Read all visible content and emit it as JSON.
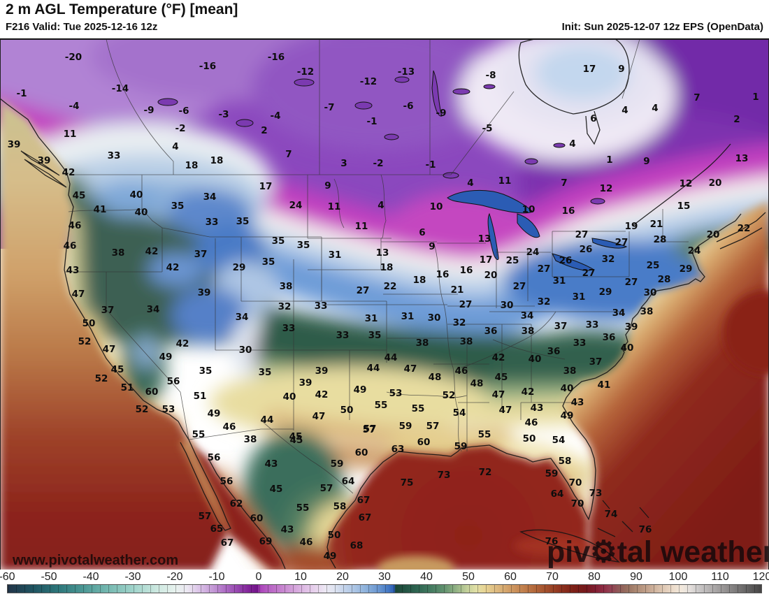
{
  "header": {
    "title": "2 m AGL Temperature (°F) [mean]",
    "valid": "F216 Valid: Tue 2025-12-16 12z",
    "init": "Init: Sun 2025-12-07 12z EPS (OpenData)"
  },
  "watermark": {
    "part1": "piv",
    "gear": "⚙",
    "part2": "tal weather",
    "url": "www.pivotalweather.com"
  },
  "colorbar": {
    "min": -60,
    "max": 120,
    "ticks": [
      -60,
      -50,
      -40,
      -30,
      -20,
      -10,
      0,
      10,
      20,
      30,
      40,
      50,
      60,
      70,
      80,
      90,
      100,
      110,
      120
    ],
    "stops": [
      [
        -60,
        "#223448"
      ],
      [
        -54,
        "#1f5360"
      ],
      [
        -48,
        "#2d767a"
      ],
      [
        -42,
        "#4b9794"
      ],
      [
        -36,
        "#76b9b1"
      ],
      [
        -30,
        "#a0d4cb"
      ],
      [
        -24,
        "#cfe9e1"
      ],
      [
        -20,
        "#e7f2ee"
      ],
      [
        -17,
        "#ece7f2"
      ],
      [
        -14,
        "#d9bfe6"
      ],
      [
        -11,
        "#c49ad6"
      ],
      [
        -8,
        "#ad6cc4"
      ],
      [
        -5,
        "#9545ae"
      ],
      [
        -2,
        "#7f1f96"
      ],
      [
        -0.2,
        "#6f1486"
      ],
      [
        0,
        "#a83eb8"
      ],
      [
        2,
        "#b55cc2"
      ],
      [
        5,
        "#c47ecd"
      ],
      [
        8,
        "#d29fd9"
      ],
      [
        11,
        "#dfbde5"
      ],
      [
        14,
        "#e9d7ee"
      ],
      [
        16,
        "#ece9f4"
      ],
      [
        18,
        "#dfe4f1"
      ],
      [
        20,
        "#c8d6ec"
      ],
      [
        23,
        "#aac4e4"
      ],
      [
        26,
        "#88aeda"
      ],
      [
        29,
        "#6492cf"
      ],
      [
        31,
        "#4276c2"
      ],
      [
        32.4,
        "#2b5cb2"
      ],
      [
        32.6,
        "#1c4636"
      ],
      [
        35,
        "#235444"
      ],
      [
        38,
        "#2f6652"
      ],
      [
        41,
        "#437a60"
      ],
      [
        44,
        "#5f906e"
      ],
      [
        46,
        "#7fa67c"
      ],
      [
        48,
        "#a3bc8c"
      ],
      [
        50,
        "#c8d29c"
      ],
      [
        52,
        "#e2e0a6"
      ],
      [
        54,
        "#e8d494"
      ],
      [
        57,
        "#ddb87e"
      ],
      [
        60,
        "#d09c64"
      ],
      [
        63,
        "#c2814e"
      ],
      [
        66,
        "#b2663a"
      ],
      [
        69,
        "#a04c2a"
      ],
      [
        72,
        "#8e331f"
      ],
      [
        75,
        "#7d2117"
      ],
      [
        78,
        "#75191c"
      ],
      [
        80,
        "#7f1d2e"
      ],
      [
        82,
        "#8d2a42"
      ],
      [
        84,
        "#934052"
      ],
      [
        86,
        "#8f5a58"
      ],
      [
        88,
        "#97705f"
      ],
      [
        90,
        "#ab8872"
      ],
      [
        93,
        "#c4a48e"
      ],
      [
        96,
        "#dbc3ae"
      ],
      [
        99,
        "#ecdccb"
      ],
      [
        101,
        "#f2e9dd"
      ],
      [
        103,
        "#e4dfdc"
      ],
      [
        105,
        "#cbc8c8"
      ],
      [
        108,
        "#b2afaf"
      ],
      [
        111,
        "#989595"
      ],
      [
        114,
        "#7c7a7a"
      ],
      [
        117,
        "#616060"
      ],
      [
        120,
        "#454444"
      ]
    ]
  },
  "map_labels": [
    [
      -20,
      105,
      80
    ],
    [
      -16,
      297,
      93
    ],
    [
      -14,
      172,
      125
    ],
    [
      -1,
      31,
      132
    ],
    [
      -4,
      106,
      150
    ],
    [
      -9,
      213,
      156
    ],
    [
      -6,
      263,
      157
    ],
    [
      -3,
      320,
      162
    ],
    [
      -2,
      258,
      182
    ],
    [
      11,
      100,
      190
    ],
    [
      4,
      251,
      208
    ],
    [
      33,
      163,
      221
    ],
    [
      18,
      274,
      235
    ],
    [
      18,
      310,
      228
    ],
    [
      39,
      20,
      205
    ],
    [
      39,
      63,
      228
    ],
    [
      42,
      98,
      245
    ],
    [
      -16,
      395,
      80
    ],
    [
      -12,
      437,
      101
    ],
    [
      -13,
      581,
      101
    ],
    [
      -12,
      527,
      115
    ],
    [
      -8,
      702,
      106
    ],
    [
      -7,
      471,
      152
    ],
    [
      -6,
      584,
      150
    ],
    [
      -9,
      631,
      160
    ],
    [
      -4,
      394,
      164
    ],
    [
      -1,
      532,
      172
    ],
    [
      -5,
      697,
      182
    ],
    [
      2,
      378,
      185
    ],
    [
      7,
      413,
      219
    ],
    [
      3,
      492,
      232
    ],
    [
      -2,
      541,
      232
    ],
    [
      -1,
      616,
      234
    ],
    [
      17,
      843,
      97
    ],
    [
      9,
      889,
      97
    ],
    [
      7,
      997,
      138
    ],
    [
      4,
      894,
      156
    ],
    [
      4,
      937,
      153
    ],
    [
      6,
      849,
      168
    ],
    [
      2,
      1054,
      169
    ],
    [
      1,
      1081,
      137
    ],
    [
      4,
      819,
      204
    ],
    [
      1,
      872,
      227
    ],
    [
      9,
      925,
      229
    ],
    [
      13,
      1061,
      225
    ],
    [
      45,
      113,
      278
    ],
    [
      40,
      195,
      277
    ],
    [
      34,
      300,
      280
    ],
    [
      41,
      143,
      298
    ],
    [
      40,
      202,
      302
    ],
    [
      35,
      254,
      293
    ],
    [
      33,
      303,
      316
    ],
    [
      35,
      347,
      315
    ],
    [
      46,
      107,
      321
    ],
    [
      46,
      100,
      350
    ],
    [
      38,
      169,
      360
    ],
    [
      42,
      217,
      358
    ],
    [
      37,
      287,
      362
    ],
    [
      42,
      247,
      381
    ],
    [
      29,
      342,
      381
    ],
    [
      43,
      104,
      385
    ],
    [
      47,
      112,
      419
    ],
    [
      39,
      292,
      417
    ],
    [
      17,
      380,
      265
    ],
    [
      9,
      469,
      264
    ],
    [
      24,
      423,
      292
    ],
    [
      11,
      478,
      294
    ],
    [
      4,
      545,
      292
    ],
    [
      10,
      624,
      294
    ],
    [
      4,
      673,
      260
    ],
    [
      11,
      722,
      257
    ],
    [
      11,
      517,
      322
    ],
    [
      6,
      604,
      331
    ],
    [
      13,
      693,
      340
    ],
    [
      9,
      618,
      351
    ],
    [
      35,
      398,
      343
    ],
    [
      35,
      434,
      349
    ],
    [
      35,
      384,
      373
    ],
    [
      31,
      479,
      363
    ],
    [
      13,
      547,
      360
    ],
    [
      17,
      695,
      370
    ],
    [
      25,
      733,
      371
    ],
    [
      18,
      553,
      381
    ],
    [
      16,
      633,
      391
    ],
    [
      16,
      667,
      385
    ],
    [
      20,
      702,
      392
    ],
    [
      18,
      600,
      399
    ],
    [
      22,
      558,
      408
    ],
    [
      27,
      519,
      414
    ],
    [
      21,
      654,
      413
    ],
    [
      38,
      409,
      408
    ],
    [
      7,
      807,
      260
    ],
    [
      12,
      867,
      268
    ],
    [
      12,
      981,
      261
    ],
    [
      20,
      1023,
      260
    ],
    [
      10,
      756,
      298
    ],
    [
      16,
      813,
      300
    ],
    [
      15,
      978,
      293
    ],
    [
      19,
      903,
      322
    ],
    [
      21,
      939,
      319
    ],
    [
      22,
      1064,
      325
    ],
    [
      20,
      1020,
      334
    ],
    [
      27,
      832,
      334
    ],
    [
      27,
      889,
      345
    ],
    [
      28,
      944,
      341
    ],
    [
      26,
      838,
      355
    ],
    [
      32,
      870,
      369
    ],
    [
      24,
      762,
      359
    ],
    [
      26,
      809,
      371
    ],
    [
      24,
      993,
      357
    ],
    [
      25,
      934,
      378
    ],
    [
      27,
      778,
      383
    ],
    [
      29,
      981,
      383
    ],
    [
      31,
      800,
      400
    ],
    [
      27,
      842,
      389
    ],
    [
      28,
      950,
      398
    ],
    [
      27,
      903,
      402
    ],
    [
      27,
      743,
      408
    ],
    [
      29,
      866,
      416
    ],
    [
      30,
      930,
      417
    ],
    [
      31,
      828,
      423
    ],
    [
      32,
      778,
      430
    ],
    [
      37,
      154,
      442
    ],
    [
      34,
      219,
      441
    ],
    [
      34,
      346,
      452
    ],
    [
      50,
      127,
      461
    ],
    [
      52,
      121,
      487
    ],
    [
      47,
      156,
      498
    ],
    [
      42,
      261,
      490
    ],
    [
      30,
      351,
      499
    ],
    [
      45,
      168,
      527
    ],
    [
      35,
      294,
      529
    ],
    [
      52,
      145,
      540
    ],
    [
      51,
      182,
      553
    ],
    [
      56,
      248,
      544
    ],
    [
      60,
      217,
      559
    ],
    [
      51,
      286,
      565
    ],
    [
      52,
      203,
      584
    ],
    [
      53,
      241,
      584
    ],
    [
      49,
      306,
      590
    ],
    [
      46,
      328,
      609
    ],
    [
      49,
      237,
      509
    ],
    [
      32,
      407,
      437
    ],
    [
      33,
      459,
      436
    ],
    [
      27,
      666,
      434
    ],
    [
      30,
      725,
      435
    ],
    [
      31,
      531,
      454
    ],
    [
      31,
      583,
      451
    ],
    [
      30,
      621,
      453
    ],
    [
      32,
      657,
      460
    ],
    [
      33,
      413,
      468
    ],
    [
      33,
      490,
      478
    ],
    [
      35,
      536,
      478
    ],
    [
      36,
      702,
      472
    ],
    [
      38,
      604,
      489
    ],
    [
      38,
      667,
      487
    ],
    [
      42,
      713,
      510
    ],
    [
      44,
      559,
      510
    ],
    [
      44,
      534,
      525
    ],
    [
      47,
      587,
      526
    ],
    [
      46,
      660,
      529
    ],
    [
      35,
      379,
      531
    ],
    [
      48,
      622,
      538
    ],
    [
      45,
      717,
      538
    ],
    [
      48,
      682,
      547
    ],
    [
      39,
      460,
      529
    ],
    [
      39,
      437,
      546
    ],
    [
      49,
      515,
      556
    ],
    [
      53,
      566,
      561
    ],
    [
      52,
      642,
      564
    ],
    [
      47,
      713,
      563
    ],
    [
      40,
      414,
      566
    ],
    [
      42,
      460,
      563
    ],
    [
      55,
      545,
      578
    ],
    [
      55,
      598,
      583
    ],
    [
      54,
      657,
      589
    ],
    [
      47,
      723,
      585
    ],
    [
      50,
      496,
      585
    ],
    [
      47,
      456,
      594
    ],
    [
      44,
      382,
      599
    ],
    [
      57,
      529,
      612
    ],
    [
      59,
      580,
      608
    ],
    [
      57,
      619,
      608
    ],
    [
      45,
      423,
      623
    ],
    [
      34,
      754,
      450
    ],
    [
      34,
      885,
      446
    ],
    [
      38,
      925,
      444
    ],
    [
      38,
      755,
      472
    ],
    [
      37,
      802,
      465
    ],
    [
      33,
      847,
      463
    ],
    [
      36,
      871,
      481
    ],
    [
      33,
      829,
      489
    ],
    [
      36,
      792,
      501
    ],
    [
      40,
      897,
      496
    ],
    [
      39,
      903,
      466
    ],
    [
      40,
      765,
      512
    ],
    [
      37,
      852,
      516
    ],
    [
      38,
      815,
      529
    ],
    [
      41,
      864,
      549
    ],
    [
      42,
      755,
      559
    ],
    [
      40,
      811,
      554
    ],
    [
      43,
      826,
      574
    ],
    [
      43,
      768,
      582
    ],
    [
      49,
      811,
      593
    ],
    [
      46,
      760,
      603
    ],
    [
      55,
      693,
      620
    ],
    [
      50,
      757,
      626
    ],
    [
      54,
      799,
      628
    ],
    [
      59,
      659,
      637
    ],
    [
      60,
      606,
      631
    ],
    [
      63,
      569,
      641
    ],
    [
      58,
      808,
      658
    ],
    [
      73,
      635,
      678
    ],
    [
      72,
      694,
      674
    ],
    [
      75,
      582,
      689
    ],
    [
      59,
      789,
      676
    ],
    [
      70,
      823,
      689
    ],
    [
      64,
      797,
      705
    ],
    [
      70,
      826,
      719
    ],
    [
      73,
      852,
      704
    ],
    [
      74,
      874,
      734
    ],
    [
      76,
      923,
      756
    ],
    [
      76,
      789,
      773
    ],
    [
      55,
      284,
      620
    ],
    [
      38,
      358,
      627
    ],
    [
      45,
      424,
      628
    ],
    [
      57,
      528,
      613
    ],
    [
      56,
      306,
      653
    ],
    [
      60,
      517,
      646
    ],
    [
      43,
      388,
      662
    ],
    [
      59,
      482,
      662
    ],
    [
      56,
      324,
      687
    ],
    [
      45,
      395,
      698
    ],
    [
      64,
      498,
      687
    ],
    [
      57,
      467,
      697
    ],
    [
      67,
      520,
      714
    ],
    [
      62,
      338,
      719
    ],
    [
      55,
      433,
      725
    ],
    [
      58,
      486,
      723
    ],
    [
      57,
      293,
      737
    ],
    [
      60,
      367,
      740
    ],
    [
      67,
      522,
      739
    ],
    [
      65,
      310,
      755
    ],
    [
      43,
      411,
      756
    ],
    [
      50,
      478,
      764
    ],
    [
      67,
      325,
      775
    ],
    [
      69,
      380,
      773
    ],
    [
      46,
      438,
      774
    ],
    [
      68,
      510,
      779
    ],
    [
      49,
      472,
      794
    ]
  ]
}
